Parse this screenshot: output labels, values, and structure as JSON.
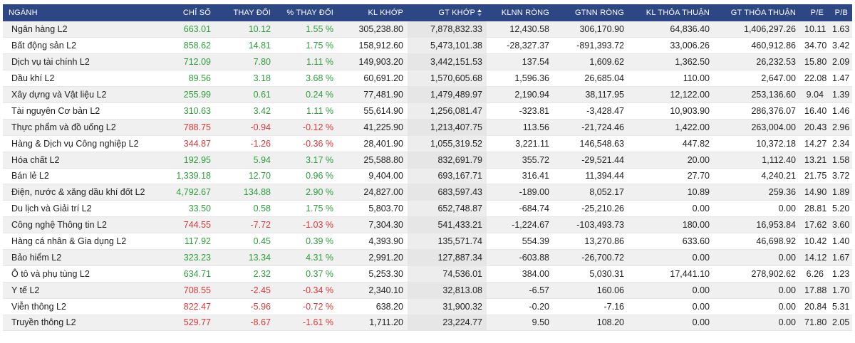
{
  "colors": {
    "header_bg": "#2c4783",
    "up": "#2e9e3a",
    "down": "#d83a3a"
  },
  "headers": {
    "nganh": "NGÀNH",
    "chi_so": "CHỈ SỐ",
    "thay_doi": "THAY ĐỔI",
    "pct_thay_doi": "% THAY ĐỔI",
    "kl_khop": "KL KHỚP",
    "gt_khop": "GT KHỚP",
    "klnn_rong": "KLNN RÒNG",
    "gtnn_rong": "GTNN RÒNG",
    "kl_thoa_thuan": "KL THỎA THUẬN",
    "gt_thoa_thuan": "GT THỎA THUẬN",
    "pe": "P/E",
    "pb": "P/B",
    "sort_icon": "sort-icon"
  },
  "rows": [
    {
      "name": "Ngân hàng L2",
      "index": "663.01",
      "change": "10.12",
      "pct": "1.55 %",
      "dir": "up",
      "kl_khop": "305,238.80",
      "gt_khop": "7,878,832.33",
      "klnn": "12,430.58",
      "gtnn": "306,170.90",
      "kl_tt": "64,836.40",
      "gt_tt": "1,406,297.26",
      "pe": "10.11",
      "pb": "1.63"
    },
    {
      "name": "Bất động sản L2",
      "index": "858.62",
      "change": "14.81",
      "pct": "1.75 %",
      "dir": "up",
      "kl_khop": "158,912.60",
      "gt_khop": "5,473,101.38",
      "klnn": "-28,327.37",
      "gtnn": "-891,393.72",
      "kl_tt": "33,006.26",
      "gt_tt": "460,912.86",
      "pe": "34.70",
      "pb": "3.42"
    },
    {
      "name": "Dịch vụ tài chính L2",
      "index": "712.09",
      "change": "7.80",
      "pct": "1.11 %",
      "dir": "up",
      "kl_khop": "149,903.20",
      "gt_khop": "3,442,151.53",
      "klnn": "137.54",
      "gtnn": "1,609.62",
      "kl_tt": "1,362.50",
      "gt_tt": "26,232.53",
      "pe": "15.80",
      "pb": "2.09"
    },
    {
      "name": "Dầu khí L2",
      "index": "89.56",
      "change": "3.18",
      "pct": "3.68 %",
      "dir": "up",
      "kl_khop": "60,691.20",
      "gt_khop": "1,570,605.68",
      "klnn": "1,596.36",
      "gtnn": "26,685.04",
      "kl_tt": "110.00",
      "gt_tt": "2,647.00",
      "pe": "22.08",
      "pb": "1.47"
    },
    {
      "name": "Xây dựng và Vật liệu L2",
      "index": "255.99",
      "change": "0.61",
      "pct": "0.24 %",
      "dir": "up",
      "kl_khop": "77,481.90",
      "gt_khop": "1,479,489.97",
      "klnn": "2,190.94",
      "gtnn": "38,117.95",
      "kl_tt": "12,122.00",
      "gt_tt": "253,136.60",
      "pe": "9.04",
      "pb": "1.39"
    },
    {
      "name": "Tài nguyên Cơ bản L2",
      "index": "310.63",
      "change": "3.42",
      "pct": "1.11 %",
      "dir": "up",
      "kl_khop": "55,614.90",
      "gt_khop": "1,256,081.47",
      "klnn": "-323.81",
      "gtnn": "-3,428.47",
      "kl_tt": "10,903.90",
      "gt_tt": "286,376.07",
      "pe": "16.40",
      "pb": "1.46"
    },
    {
      "name": "Thực phẩm và đồ uống L2",
      "index": "788.75",
      "change": "-0.94",
      "pct": "-0.12 %",
      "dir": "down",
      "kl_khop": "41,225.90",
      "gt_khop": "1,213,407.75",
      "klnn": "113.56",
      "gtnn": "-21,724.46",
      "kl_tt": "1,422.00",
      "gt_tt": "263,004.00",
      "pe": "20.43",
      "pb": "2.96"
    },
    {
      "name": "Hàng & Dịch vụ Công nghiệp L2",
      "index": "344.87",
      "change": "-1.26",
      "pct": "-0.36 %",
      "dir": "down",
      "kl_khop": "28,401.90",
      "gt_khop": "1,055,319.52",
      "klnn": "3,221.11",
      "gtnn": "146,548.63",
      "kl_tt": "447.82",
      "gt_tt": "10,372.18",
      "pe": "14.27",
      "pb": "2.34"
    },
    {
      "name": "Hóa chất L2",
      "index": "192.95",
      "change": "5.94",
      "pct": "3.17 %",
      "dir": "up",
      "kl_khop": "25,588.80",
      "gt_khop": "832,691.79",
      "klnn": "355.72",
      "gtnn": "-29,521.44",
      "kl_tt": "20.00",
      "gt_tt": "1,112.40",
      "pe": "13.21",
      "pb": "1.58"
    },
    {
      "name": "Bán lẻ L2",
      "index": "1,339.18",
      "change": "12.70",
      "pct": "0.96 %",
      "dir": "up",
      "kl_khop": "9,404.00",
      "gt_khop": "693,167.71",
      "klnn": "316.41",
      "gtnn": "11,394.44",
      "kl_tt": "27.70",
      "gt_tt": "4,240.21",
      "pe": "21.75",
      "pb": "3.72"
    },
    {
      "name": "Điện, nước & xăng dầu khí đốt L2",
      "index": "4,792.67",
      "change": "134.88",
      "pct": "2.90 %",
      "dir": "up",
      "kl_khop": "24,827.00",
      "gt_khop": "683,597.43",
      "klnn": "-189.00",
      "gtnn": "8,052.17",
      "kl_tt": "10.89",
      "gt_tt": "259.36",
      "pe": "14.90",
      "pb": "1.89"
    },
    {
      "name": "Du lịch và Giải trí L2",
      "index": "33.50",
      "change": "0.58",
      "pct": "1.75 %",
      "dir": "up",
      "kl_khop": "5,803.70",
      "gt_khop": "652,748.87",
      "klnn": "-684.74",
      "gtnn": "-25,210.26",
      "kl_tt": "0.00",
      "gt_tt": "0.00",
      "pe": "28.81",
      "pb": "5.20"
    },
    {
      "name": "Công nghệ Thông tin L2",
      "index": "744.55",
      "change": "-7.72",
      "pct": "-1.03 %",
      "dir": "down",
      "kl_khop": "7,304.30",
      "gt_khop": "541,433.21",
      "klnn": "-1,224.67",
      "gtnn": "-103,493.73",
      "kl_tt": "180.00",
      "gt_tt": "16,953.84",
      "pe": "17.62",
      "pb": "3.60"
    },
    {
      "name": "Hàng cá nhân & Gia dụng L2",
      "index": "117.92",
      "change": "0.45",
      "pct": "0.39 %",
      "dir": "up",
      "kl_khop": "4,393.90",
      "gt_khop": "135,571.74",
      "klnn": "554.39",
      "gtnn": "13,270.86",
      "kl_tt": "633.60",
      "gt_tt": "46,698.92",
      "pe": "10.42",
      "pb": "1.40"
    },
    {
      "name": "Bảo hiểm L2",
      "index": "323.23",
      "change": "13.34",
      "pct": "4.31 %",
      "dir": "up",
      "kl_khop": "2,991.20",
      "gt_khop": "127,887.34",
      "klnn": "-603.88",
      "gtnn": "-26,700.72",
      "kl_tt": "0.00",
      "gt_tt": "0.00",
      "pe": "14.12",
      "pb": "1.67"
    },
    {
      "name": "Ô tô và phụ tùng L2",
      "index": "634.71",
      "change": "2.32",
      "pct": "0.37 %",
      "dir": "up",
      "kl_khop": "5,253.30",
      "gt_khop": "74,536.01",
      "klnn": "384.00",
      "gtnn": "5,030.31",
      "kl_tt": "17,441.10",
      "gt_tt": "278,902.62",
      "pe": "6.26",
      "pb": "1.23"
    },
    {
      "name": "Y tế L2",
      "index": "708.55",
      "change": "-2.45",
      "pct": "-0.34 %",
      "dir": "down",
      "kl_khop": "2,340.10",
      "gt_khop": "32,813.08",
      "klnn": "-6.57",
      "gtnn": "160.06",
      "kl_tt": "0.00",
      "gt_tt": "0.00",
      "pe": "17.88",
      "pb": "1.70"
    },
    {
      "name": "Viễn thông L2",
      "index": "822.47",
      "change": "-5.96",
      "pct": "-0.72 %",
      "dir": "down",
      "kl_khop": "638.20",
      "gt_khop": "31,900.32",
      "klnn": "-0.20",
      "gtnn": "-7.16",
      "kl_tt": "0.00",
      "gt_tt": "0.00",
      "pe": "20.84",
      "pb": "5.31"
    },
    {
      "name": "Truyền thông L2",
      "index": "529.77",
      "change": "-8.67",
      "pct": "-1.61 %",
      "dir": "down",
      "kl_khop": "1,711.20",
      "gt_khop": "23,224.77",
      "klnn": "9.50",
      "gtnn": "108.20",
      "kl_tt": "0.00",
      "gt_tt": "0.00",
      "pe": "71.80",
      "pb": "2.05"
    }
  ]
}
